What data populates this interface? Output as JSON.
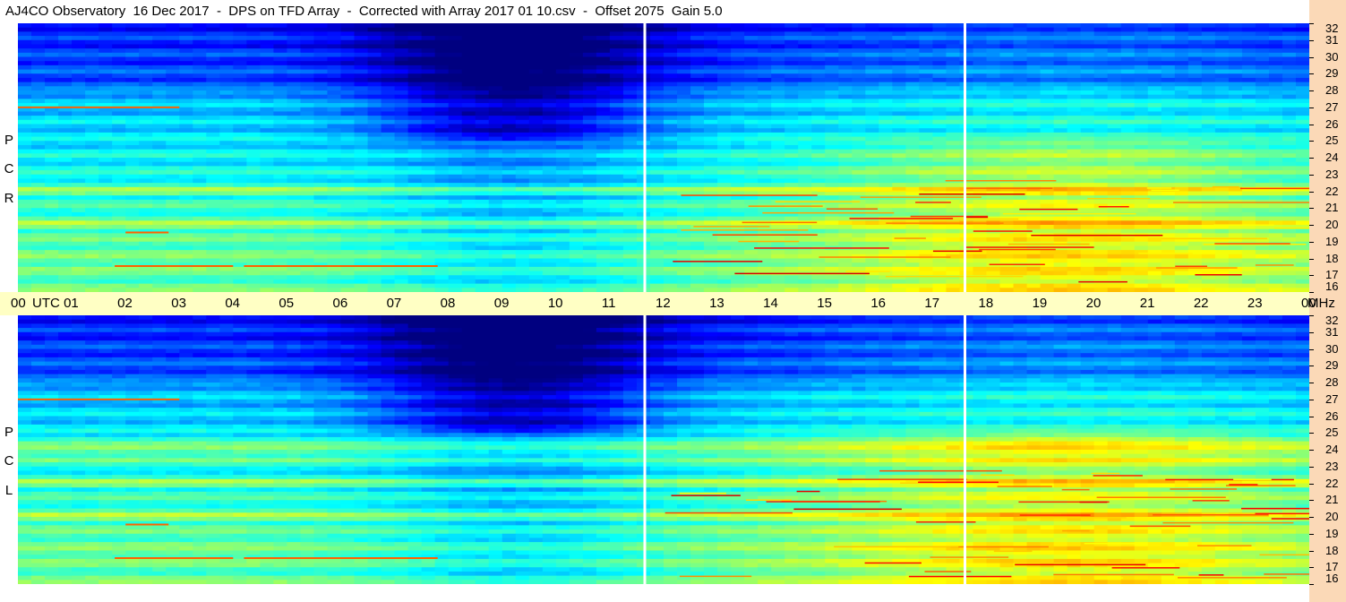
{
  "title": "AJ4CO Observatory  16 Dec 2017  -  DPS on TFD Array  -  Corrected with Array 2017 01 10.csv  -  Offset 2075  Gain 5.0",
  "panels": [
    {
      "id": "rcp",
      "label": [
        "R",
        "C",
        "P"
      ]
    },
    {
      "id": "lcp",
      "label": [
        "L",
        "C",
        "P"
      ]
    }
  ],
  "colors": {
    "axis_band": "#ffffc4",
    "right_strip": "#fbd9b7"
  },
  "chart_data": {
    "type": "heatmap",
    "title": "AJ4CO Observatory  16 Dec 2017  -  DPS on TFD Array  -  Corrected with Array 2017 01 10.csv  -  Offset 2075  Gain 5.0",
    "x_axis": {
      "unit_label": "UTC",
      "ticks": [
        "00",
        "01",
        "02",
        "03",
        "04",
        "05",
        "06",
        "07",
        "08",
        "09",
        "10",
        "11",
        "12",
        "13",
        "14",
        "15",
        "16",
        "17",
        "18",
        "19",
        "20",
        "21",
        "22",
        "23",
        "00"
      ],
      "range_hours": [
        0,
        24
      ]
    },
    "y_axis": {
      "unit_label": "MHz",
      "ticks": [
        32,
        31,
        30,
        29,
        28,
        27,
        26,
        25,
        24,
        23,
        22,
        21,
        20,
        19,
        18,
        17,
        16
      ],
      "range_mhz": [
        16,
        32
      ]
    },
    "series": [
      {
        "name": "RCP"
      },
      {
        "name": "LCP"
      }
    ],
    "gaps_utc_hours": [
      11.65,
      17.6
    ],
    "colormap": "jet"
  }
}
